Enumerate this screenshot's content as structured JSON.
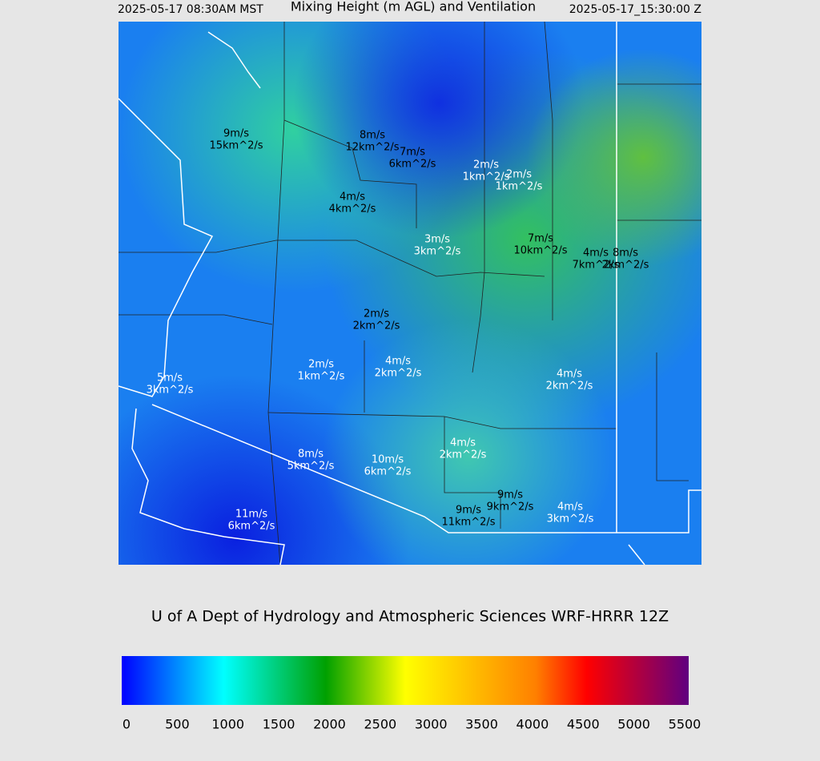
{
  "header": {
    "left": "2025-05-17 08:30AM MST",
    "title": "Mixing Height (m AGL) and Ventilation",
    "right": "2025-05-17_15:30:00 Z"
  },
  "map": {
    "labels": [
      {
        "speed": "9m/s",
        "ventilation": "15km^2/s"
      },
      {
        "speed": "8m/s",
        "ventilation": "12km^2/s"
      },
      {
        "speed": "7m/s",
        "ventilation": "6km^2/s"
      },
      {
        "speed": "2m/s",
        "ventilation": "1km^2/s"
      },
      {
        "speed": "2m/s",
        "ventilation": "1km^2/s"
      },
      {
        "speed": "4m/s",
        "ventilation": "4km^2/s"
      },
      {
        "speed": "3m/s",
        "ventilation": "3km^2/s"
      },
      {
        "speed": "7m/s",
        "ventilation": "10km^2/s"
      },
      {
        "speed": "4m/s",
        "ventilation": "7km^2/s"
      },
      {
        "speed": "8m/s",
        "ventilation": "2km^2/s"
      },
      {
        "speed": "2m/s",
        "ventilation": "2km^2/s"
      },
      {
        "speed": "2m/s",
        "ventilation": "1km^2/s"
      },
      {
        "speed": "4m/s",
        "ventilation": "2km^2/s"
      },
      {
        "speed": "4m/s",
        "ventilation": "2km^2/s"
      },
      {
        "speed": "5m/s",
        "ventilation": "3km^2/s"
      },
      {
        "speed": "8m/s",
        "ventilation": "5km^2/s"
      },
      {
        "speed": "10m/s",
        "ventilation": "6km^2/s"
      },
      {
        "speed": "4m/s",
        "ventilation": "2km^2/s"
      },
      {
        "speed": "9m/s",
        "ventilation": "9km^2/s"
      },
      {
        "speed": "9m/s",
        "ventilation": "11km^2/s"
      },
      {
        "speed": "4m/s",
        "ventilation": "3km^2/s"
      },
      {
        "speed": "11m/s",
        "ventilation": "6km^2/s"
      }
    ]
  },
  "footer": {
    "credit": "U of A Dept of Hydrology and Atmospheric Sciences WRF-HRRR 12Z"
  },
  "colorbar": {
    "ticks": [
      0,
      500,
      1000,
      1500,
      2000,
      2500,
      3000,
      3500,
      4000,
      4500,
      5000,
      5500
    ]
  }
}
